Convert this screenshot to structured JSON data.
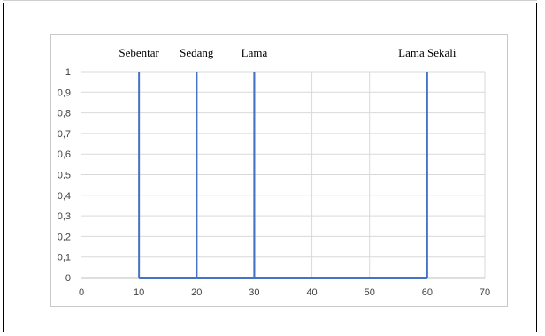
{
  "chart_data": {
    "type": "line",
    "title": "",
    "xlabel": "",
    "ylabel": "",
    "xlim": [
      0,
      70
    ],
    "ylim": [
      0,
      1
    ],
    "x_ticks": [
      "0",
      "10",
      "20",
      "30",
      "40",
      "50",
      "60",
      "70"
    ],
    "y_ticks": [
      "0",
      "0,1",
      "0,2",
      "0,3",
      "0,4",
      "0,5",
      "0,6",
      "0,7",
      "0,8",
      "0,9",
      "1"
    ],
    "grid": true,
    "series_color": "#4472c4",
    "series": [
      {
        "points": [
          [
            10,
            1
          ],
          [
            10,
            0
          ],
          [
            20,
            0
          ],
          [
            20,
            1
          ],
          [
            20,
            0
          ],
          [
            30,
            0
          ],
          [
            30,
            1
          ],
          [
            30,
            0
          ],
          [
            60,
            0
          ],
          [
            60,
            1
          ]
        ]
      }
    ],
    "annotations": [
      {
        "text": "Sebentar",
        "x": 10
      },
      {
        "text": "Sedang",
        "x": 20
      },
      {
        "text": "Lama",
        "x": 30
      },
      {
        "text": "Lama Sekali",
        "x": 60
      }
    ]
  }
}
